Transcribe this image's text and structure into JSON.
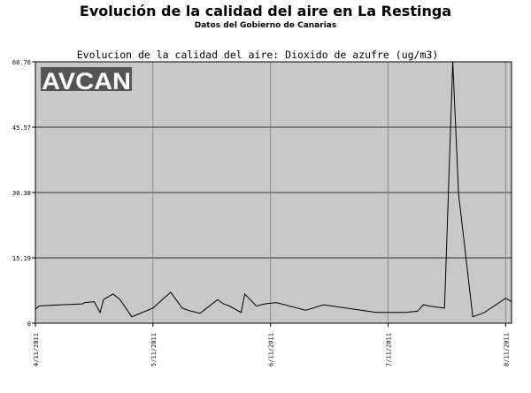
{
  "page": {
    "title": "Evolución de la calidad del aire en La Restinga",
    "subtitle": "Datos del Gobierno de Canarias"
  },
  "chart_data": {
    "type": "line",
    "title": "Evolucion de la calidad del aire: Dioxido de azufre (ug/m3)",
    "watermark": "AVCAN",
    "xlabel": "",
    "ylabel": "",
    "ylim": [
      0,
      60.76
    ],
    "xlim": [
      4.0,
      8.05
    ],
    "y_ticks": [
      "0",
      "15.19",
      "30.38",
      "45.57",
      "60.76"
    ],
    "x_ticks": [
      {
        "value": 4.0,
        "label": "4/11/2011"
      },
      {
        "value": 5.0,
        "label": "5/11/2011"
      },
      {
        "value": 6.0,
        "label": "6/11/2011"
      },
      {
        "value": 7.0,
        "label": "7/11/2011"
      },
      {
        "value": 8.0,
        "label": "8/11/2011"
      }
    ],
    "grid": true,
    "colors": {
      "plot_bg": "#c8c8c8",
      "line": "#000000",
      "grid": "#000000",
      "watermark_text": "#ffffff"
    },
    "series": [
      {
        "x": [
          4.0,
          4.03,
          4.15,
          4.4,
          4.42,
          4.5,
          4.55,
          4.58,
          4.66,
          4.72,
          4.82,
          5.0,
          5.08,
          5.15,
          5.25,
          5.3,
          5.4,
          5.55,
          5.6,
          5.65,
          5.75,
          5.78,
          5.88,
          5.95,
          6.05,
          6.3,
          6.45,
          6.9,
          7.15,
          7.25,
          7.3,
          7.35,
          7.48,
          7.55,
          7.6,
          7.72,
          7.82,
          8.0,
          8.05
        ],
        "y": [
          3.2,
          4.0,
          4.2,
          4.5,
          4.8,
          5.0,
          2.5,
          5.5,
          6.8,
          5.5,
          1.5,
          3.5,
          5.5,
          7.2,
          3.5,
          3.0,
          2.3,
          5.5,
          4.5,
          4.0,
          2.5,
          6.8,
          4.0,
          4.5,
          4.8,
          3.0,
          4.3,
          2.5,
          2.5,
          2.8,
          4.3,
          4.0,
          3.5,
          60.76,
          30.0,
          1.5,
          2.5,
          5.8,
          5.0
        ]
      }
    ]
  }
}
